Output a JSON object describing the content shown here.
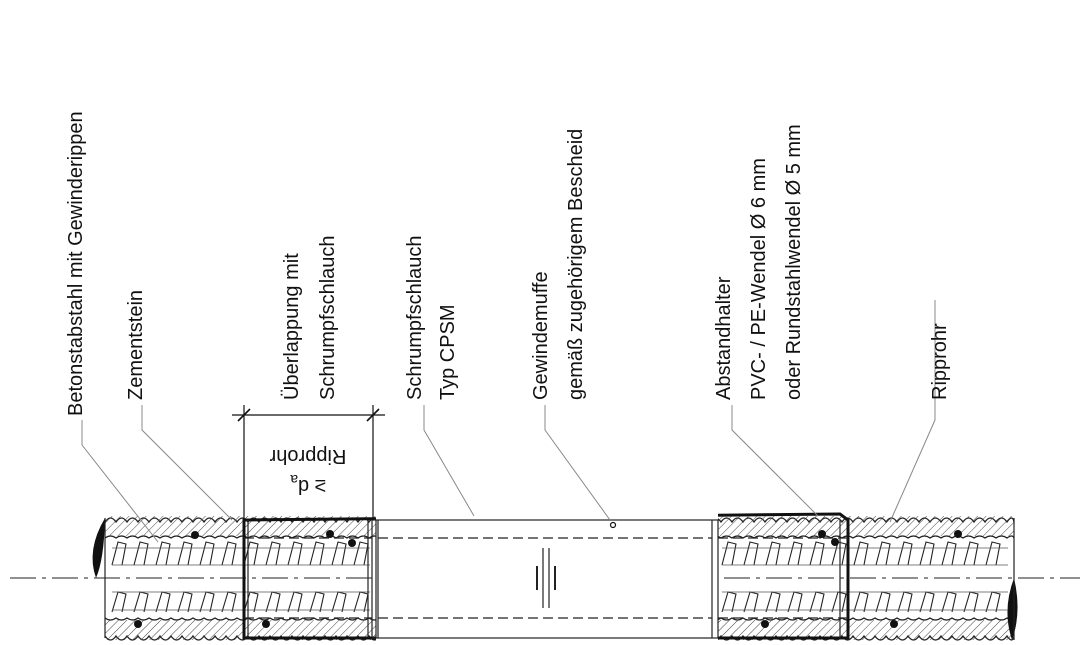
{
  "labels": {
    "betonstabstahl": "Betonstabstahl mit Gewinderippen",
    "zementstein": "Zementstein",
    "ueberlappung_1": "Überlappung mit",
    "ueberlappung_2": "Schrumpfschlauch",
    "schrumpfschlauch_1": "Schrumpfschlauch",
    "schrumpfschlauch_2": "Typ CPSM",
    "gewindemuffe_1": "Gewindemuffe",
    "gewindemuffe_2": "gemäß zugehörigem Bescheid",
    "abstandhalter_1": "Abstandhalter",
    "abstandhalter_2": "PVC- / PE-Wendel Ø 6 mm",
    "abstandhalter_3": "oder Rundstahlwendel Ø 5 mm",
    "ripprohr": "Ripprohr"
  },
  "dimension": {
    "line1": "≥ d",
    "subscript": "a",
    "line2": "Ripprohr"
  }
}
